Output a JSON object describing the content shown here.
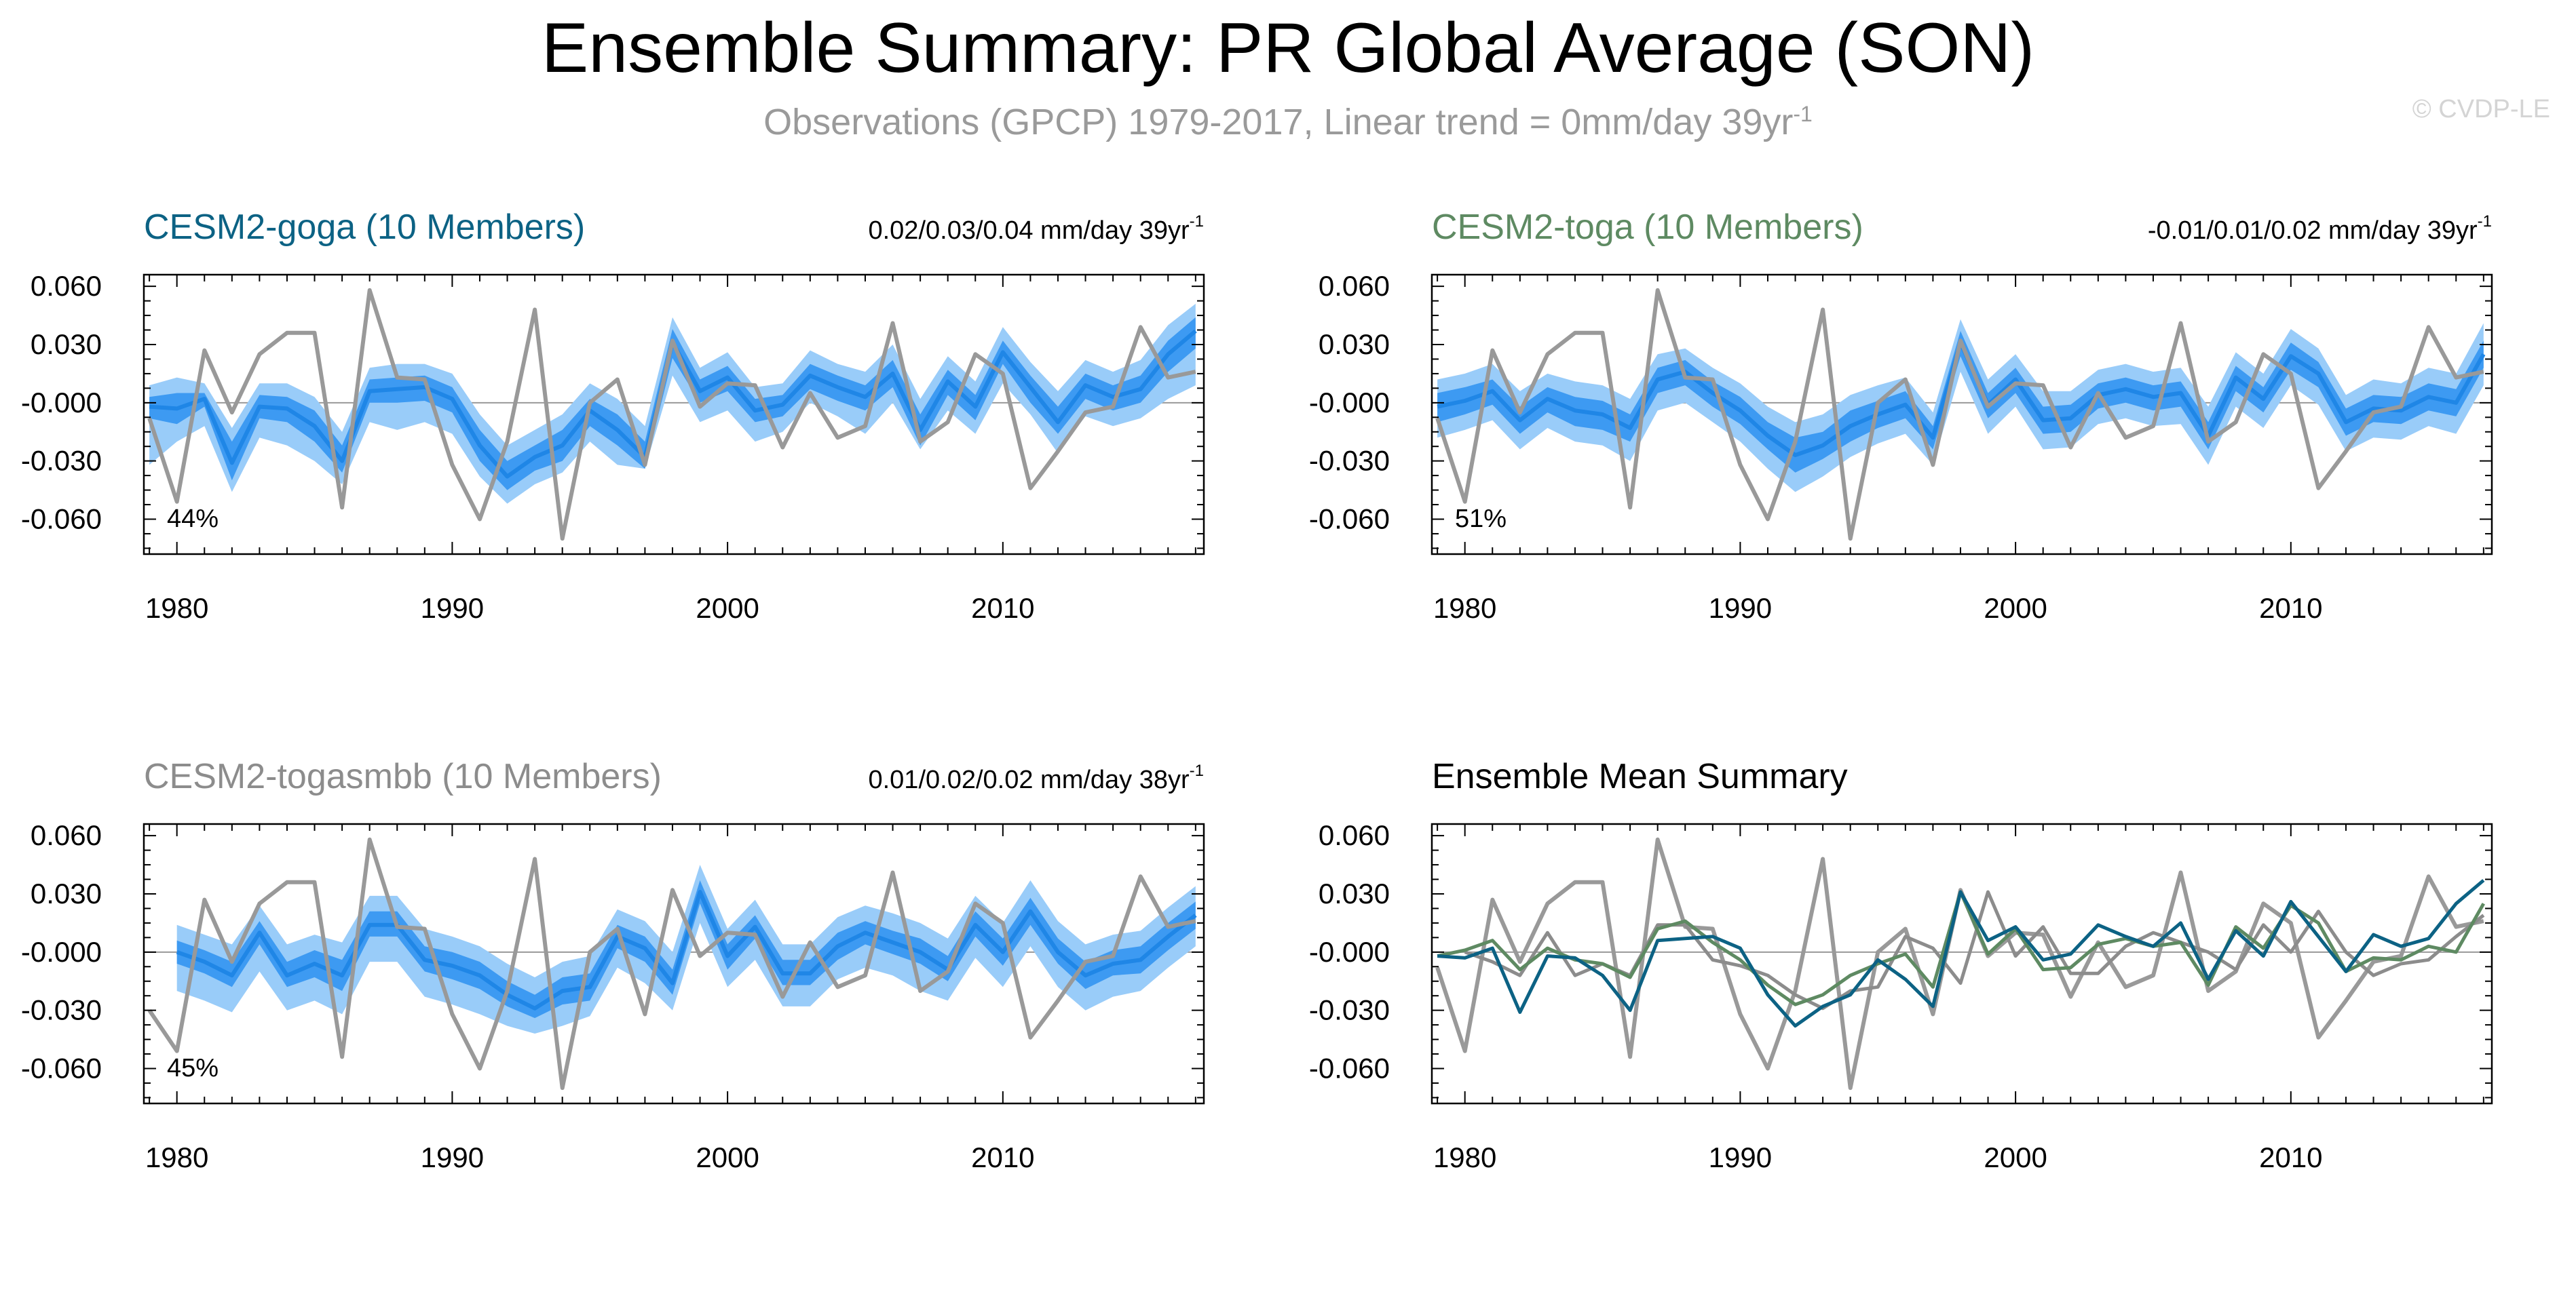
{
  "title": "Ensemble Summary: PR Global Average (SON)",
  "subtitle": "Observations (GPCP) 1979-2017, Linear trend = 0mm/day 39yr",
  "subtitle_sup": "-1",
  "watermark": "© CVDP-LE",
  "colors": {
    "obs": "#999999",
    "band_outer": "#99ccf9",
    "band_inner": "#3d9af2",
    "ens_line": "#1f86e6",
    "goga": "#0c6284",
    "toga": "#5e8a62",
    "togasmbb": "#8c8c8c",
    "axis": "#000000",
    "zero_line": "#999999"
  },
  "chart_data": [
    {
      "type": "area",
      "panel": "goga",
      "title": "CESM2-goga (10 Members)",
      "title_color": "#0c6284",
      "trend_text": "0.02/0.03/0.04 mm/day 39yr",
      "trend_sup": "-1",
      "percent_label": "44%",
      "x_range": [
        1979,
        2017
      ],
      "xlim": [
        1978.8,
        2017.3
      ],
      "ylim": [
        -0.078,
        0.066
      ],
      "y_ticks": [
        0.06,
        0.03,
        0.0,
        -0.03,
        -0.06
      ],
      "y_tick_labels": [
        "0.060",
        "0.030",
        "-0.000",
        "-0.030",
        "-0.060"
      ],
      "x_ticks": [
        1980,
        1990,
        2000,
        2010
      ],
      "x_tick_labels": [
        "1980",
        "1990",
        "2000",
        "2010"
      ],
      "ensemble_mean": [
        -0.002,
        -0.003,
        0.002,
        -0.031,
        -0.002,
        -0.003,
        -0.012,
        -0.03,
        0.006,
        0.007,
        0.008,
        0.002,
        -0.022,
        -0.038,
        -0.028,
        -0.022,
        -0.004,
        -0.014,
        -0.028,
        0.031,
        0.006,
        0.013,
        -0.004,
        -0.001,
        0.014,
        0.008,
        0.003,
        0.015,
        -0.014,
        0.011,
        -0.002,
        0.026,
        0.008,
        -0.01,
        0.009,
        0.003,
        0.007,
        0.025,
        0.037
      ],
      "inner_upper": [
        0.003,
        0.005,
        0.005,
        -0.02,
        0.004,
        0.003,
        -0.004,
        -0.022,
        0.012,
        0.013,
        0.014,
        0.008,
        -0.014,
        -0.03,
        -0.022,
        -0.014,
        0.002,
        -0.006,
        -0.02,
        0.038,
        0.012,
        0.019,
        0.002,
        0.004,
        0.02,
        0.014,
        0.009,
        0.022,
        -0.006,
        0.017,
        0.004,
        0.032,
        0.014,
        -0.002,
        0.015,
        0.009,
        0.014,
        0.032,
        0.044
      ],
      "inner_lower": [
        -0.008,
        -0.011,
        -0.002,
        -0.04,
        -0.008,
        -0.01,
        -0.02,
        -0.036,
        0.0,
        0.0,
        0.001,
        -0.005,
        -0.03,
        -0.045,
        -0.035,
        -0.03,
        -0.012,
        -0.022,
        -0.034,
        0.023,
        0.0,
        0.006,
        -0.01,
        -0.007,
        0.007,
        0.001,
        -0.004,
        0.008,
        -0.022,
        0.004,
        -0.009,
        0.02,
        0.0,
        -0.016,
        0.002,
        -0.004,
        0.0,
        0.016,
        0.028
      ],
      "outer_upper": [
        0.009,
        0.013,
        0.01,
        -0.013,
        0.01,
        0.01,
        0.003,
        -0.015,
        0.018,
        0.02,
        0.02,
        0.015,
        -0.006,
        -0.022,
        -0.014,
        -0.006,
        0.01,
        0.002,
        -0.012,
        0.044,
        0.018,
        0.026,
        0.008,
        0.01,
        0.027,
        0.02,
        0.016,
        0.03,
        0.002,
        0.024,
        0.011,
        0.039,
        0.021,
        0.006,
        0.022,
        0.016,
        0.022,
        0.04,
        0.051
      ],
      "outer_lower": [
        -0.032,
        -0.02,
        -0.012,
        -0.046,
        -0.018,
        -0.022,
        -0.03,
        -0.042,
        -0.01,
        -0.014,
        -0.01,
        -0.016,
        -0.038,
        -0.052,
        -0.042,
        -0.036,
        -0.02,
        -0.032,
        -0.034,
        0.014,
        -0.01,
        -0.004,
        -0.02,
        -0.015,
        0.0,
        -0.007,
        -0.016,
        0.0,
        -0.024,
        -0.004,
        -0.016,
        0.01,
        -0.006,
        -0.026,
        -0.007,
        -0.012,
        -0.008,
        0.002,
        0.009
      ],
      "obs": [
        -0.008,
        -0.051,
        0.027,
        -0.005,
        0.025,
        0.036,
        0.036,
        -0.054,
        0.058,
        0.013,
        0.012,
        -0.032,
        -0.06,
        -0.02,
        0.048,
        -0.07,
        0.0,
        0.012,
        -0.032,
        0.032,
        -0.002,
        0.01,
        0.009,
        -0.023,
        0.005,
        -0.018,
        -0.012,
        0.041,
        -0.02,
        -0.01,
        0.025,
        0.015,
        -0.044,
        -0.025,
        -0.005,
        -0.002,
        0.039,
        0.013,
        0.016
      ]
    },
    {
      "type": "area",
      "panel": "toga",
      "title": "CESM2-toga (10 Members)",
      "title_color": "#5e8a62",
      "trend_text": "-0.01/0.01/0.02 mm/day 39yr",
      "trend_sup": "-1",
      "percent_label": "51%",
      "x_range": [
        1979,
        2017
      ],
      "xlim": [
        1978.8,
        2017.3
      ],
      "ylim": [
        -0.078,
        0.066
      ],
      "y_ticks": [
        0.06,
        0.03,
        0.0,
        -0.03,
        -0.06
      ],
      "y_tick_labels": [
        "0.060",
        "0.030",
        "-0.000",
        "-0.030",
        "-0.060"
      ],
      "x_ticks": [
        1980,
        1990,
        2000,
        2010
      ],
      "x_tick_labels": [
        "1980",
        "1990",
        "2000",
        "2010"
      ],
      "ensemble_mean": [
        -0.002,
        0.001,
        0.006,
        -0.009,
        0.002,
        -0.004,
        -0.006,
        -0.013,
        0.012,
        0.016,
        0.005,
        -0.004,
        -0.017,
        -0.027,
        -0.022,
        -0.012,
        -0.006,
        -0.001,
        -0.018,
        0.031,
        -0.001,
        0.012,
        -0.009,
        -0.008,
        0.004,
        0.007,
        0.003,
        0.005,
        -0.017,
        0.013,
        0.002,
        0.024,
        0.015,
        -0.01,
        -0.003,
        -0.004,
        0.003,
        0.0,
        0.025
      ],
      "inner_upper": [
        0.005,
        0.008,
        0.012,
        -0.002,
        0.008,
        0.003,
        0.001,
        -0.006,
        0.018,
        0.022,
        0.011,
        0.003,
        -0.01,
        -0.018,
        -0.015,
        -0.004,
        0.001,
        0.006,
        -0.012,
        0.037,
        0.005,
        0.018,
        -0.002,
        -0.001,
        0.01,
        0.013,
        0.009,
        0.011,
        -0.01,
        0.019,
        0.008,
        0.031,
        0.021,
        -0.003,
        0.004,
        0.003,
        0.01,
        0.007,
        0.032
      ],
      "inner_lower": [
        -0.01,
        -0.006,
        -0.001,
        -0.016,
        -0.005,
        -0.012,
        -0.014,
        -0.02,
        0.005,
        0.009,
        -0.002,
        -0.011,
        -0.024,
        -0.036,
        -0.029,
        -0.02,
        -0.013,
        -0.008,
        -0.024,
        0.024,
        -0.008,
        0.005,
        -0.016,
        -0.015,
        -0.003,
        0.0,
        -0.004,
        -0.002,
        -0.024,
        0.006,
        -0.005,
        0.017,
        0.008,
        -0.017,
        -0.01,
        -0.011,
        -0.004,
        -0.007,
        0.018
      ],
      "outer_upper": [
        0.012,
        0.015,
        0.02,
        0.006,
        0.015,
        0.011,
        0.009,
        0.002,
        0.025,
        0.028,
        0.018,
        0.01,
        -0.002,
        -0.01,
        -0.006,
        0.004,
        0.009,
        0.013,
        -0.005,
        0.043,
        0.012,
        0.025,
        0.006,
        0.006,
        0.017,
        0.02,
        0.016,
        0.018,
        -0.002,
        0.026,
        0.015,
        0.038,
        0.028,
        0.004,
        0.012,
        0.01,
        0.018,
        0.015,
        0.041
      ],
      "outer_lower": [
        -0.018,
        -0.014,
        -0.009,
        -0.024,
        -0.013,
        -0.02,
        -0.022,
        -0.03,
        -0.004,
        0.0,
        -0.01,
        -0.02,
        -0.034,
        -0.046,
        -0.038,
        -0.028,
        -0.021,
        -0.016,
        -0.032,
        0.016,
        -0.016,
        -0.002,
        -0.024,
        -0.023,
        -0.011,
        -0.008,
        -0.012,
        -0.011,
        -0.032,
        -0.002,
        -0.013,
        0.009,
        -0.001,
        -0.025,
        -0.018,
        -0.019,
        -0.012,
        -0.016,
        0.009
      ],
      "obs": [
        -0.008,
        -0.051,
        0.027,
        -0.005,
        0.025,
        0.036,
        0.036,
        -0.054,
        0.058,
        0.013,
        0.012,
        -0.032,
        -0.06,
        -0.02,
        0.048,
        -0.07,
        0.0,
        0.012,
        -0.032,
        0.032,
        -0.002,
        0.01,
        0.009,
        -0.023,
        0.005,
        -0.018,
        -0.012,
        0.041,
        -0.02,
        -0.01,
        0.025,
        0.015,
        -0.044,
        -0.025,
        -0.005,
        -0.002,
        0.039,
        0.013,
        0.016
      ]
    },
    {
      "type": "area",
      "panel": "togasmbb",
      "title": "CESM2-togasmbb (10 Members)",
      "title_color": "#8c8c8c",
      "trend_text": "0.01/0.02/0.02 mm/day 38yr",
      "trend_sup": "-1",
      "percent_label": "45%",
      "x_range": [
        1980,
        2017
      ],
      "xlim": [
        1978.8,
        2017.3
      ],
      "ylim": [
        -0.078,
        0.066
      ],
      "y_ticks": [
        0.06,
        0.03,
        0.0,
        -0.03,
        -0.06
      ],
      "y_tick_labels": [
        "0.060",
        "0.030",
        "-0.000",
        "-0.030",
        "-0.060"
      ],
      "x_ticks": [
        1980,
        1990,
        2000,
        2010
      ],
      "x_tick_labels": [
        "1980",
        "1990",
        "2000",
        "2010"
      ],
      "ensemble_mean": [
        0.0,
        -0.005,
        -0.012,
        0.01,
        -0.012,
        -0.006,
        -0.012,
        0.014,
        0.014,
        -0.004,
        -0.007,
        -0.012,
        -0.022,
        -0.029,
        -0.02,
        -0.018,
        0.008,
        0.002,
        -0.016,
        0.031,
        -0.002,
        0.013,
        -0.011,
        -0.011,
        0.003,
        0.01,
        0.005,
        0.0,
        -0.009,
        0.014,
        0.0,
        0.021,
        0.0,
        -0.012,
        -0.006,
        -0.004,
        0.008,
        0.019
      ],
      "inner_upper": [
        0.006,
        0.001,
        -0.005,
        0.016,
        -0.005,
        0.001,
        -0.004,
        0.021,
        0.021,
        0.003,
        0.0,
        -0.005,
        -0.015,
        -0.022,
        -0.013,
        -0.011,
        0.014,
        0.008,
        -0.009,
        0.037,
        0.004,
        0.019,
        -0.004,
        -0.004,
        0.01,
        0.016,
        0.011,
        0.007,
        -0.002,
        0.021,
        0.007,
        0.028,
        0.007,
        -0.005,
        0.001,
        0.003,
        0.015,
        0.026
      ],
      "inner_lower": [
        -0.006,
        -0.011,
        -0.018,
        0.004,
        -0.018,
        -0.013,
        -0.02,
        0.008,
        0.008,
        -0.01,
        -0.014,
        -0.019,
        -0.028,
        -0.034,
        -0.027,
        -0.025,
        0.002,
        -0.005,
        -0.022,
        0.025,
        -0.009,
        0.007,
        -0.017,
        -0.017,
        -0.004,
        0.004,
        -0.001,
        -0.006,
        -0.015,
        0.008,
        -0.007,
        0.014,
        -0.006,
        -0.019,
        -0.012,
        -0.011,
        0.001,
        0.012
      ],
      "outer_upper": [
        0.014,
        0.009,
        0.004,
        0.024,
        0.004,
        0.009,
        0.005,
        0.029,
        0.029,
        0.012,
        0.008,
        0.003,
        -0.006,
        -0.013,
        -0.005,
        -0.002,
        0.022,
        0.016,
        0.0,
        0.045,
        0.012,
        0.027,
        0.004,
        0.004,
        0.018,
        0.024,
        0.02,
        0.015,
        0.007,
        0.029,
        0.015,
        0.037,
        0.016,
        0.004,
        0.009,
        0.011,
        0.023,
        0.034
      ],
      "outer_lower": [
        -0.02,
        -0.025,
        -0.031,
        -0.01,
        -0.03,
        -0.025,
        -0.032,
        -0.005,
        -0.005,
        -0.023,
        -0.027,
        -0.032,
        -0.038,
        -0.042,
        -0.038,
        -0.033,
        -0.008,
        -0.016,
        -0.03,
        0.015,
        -0.018,
        -0.004,
        -0.028,
        -0.028,
        -0.014,
        -0.008,
        -0.012,
        -0.02,
        -0.025,
        -0.003,
        -0.018,
        0.003,
        -0.018,
        -0.03,
        -0.023,
        -0.02,
        -0.008,
        0.003
      ],
      "obs": [
        -0.03,
        -0.051,
        0.027,
        -0.005,
        0.025,
        0.036,
        0.036,
        -0.054,
        0.058,
        0.013,
        0.012,
        -0.032,
        -0.06,
        -0.02,
        0.048,
        -0.07,
        0.0,
        0.012,
        -0.032,
        0.032,
        -0.002,
        0.01,
        0.009,
        -0.023,
        0.005,
        -0.018,
        -0.012,
        0.041,
        -0.02,
        -0.01,
        0.025,
        0.015,
        -0.044,
        -0.025,
        -0.005,
        -0.002,
        0.039,
        0.013,
        0.016
      ]
    },
    {
      "type": "line",
      "panel": "summary",
      "title": "Ensemble Mean Summary",
      "title_color": "#000000",
      "x_range": [
        1979,
        2017
      ],
      "xlim": [
        1978.8,
        2017.3
      ],
      "ylim": [
        -0.078,
        0.066
      ],
      "y_ticks": [
        0.06,
        0.03,
        0.0,
        -0.03,
        -0.06
      ],
      "y_tick_labels": [
        "0.060",
        "0.030",
        "-0.000",
        "-0.030",
        "-0.060"
      ],
      "x_ticks": [
        1980,
        1990,
        2000,
        2010
      ],
      "x_tick_labels": [
        "1980",
        "1990",
        "2000",
        "2010"
      ],
      "obs": [
        -0.008,
        -0.051,
        0.027,
        -0.005,
        0.025,
        0.036,
        0.036,
        -0.054,
        0.058,
        0.013,
        0.012,
        -0.032,
        -0.06,
        -0.02,
        0.048,
        -0.07,
        0.0,
        0.012,
        -0.032,
        0.032,
        -0.002,
        0.01,
        0.009,
        -0.023,
        0.005,
        -0.018,
        -0.012,
        0.041,
        -0.02,
        -0.01,
        0.025,
        0.015,
        -0.044,
        -0.025,
        -0.005,
        -0.002,
        0.039,
        0.013,
        0.016
      ],
      "series": [
        {
          "color": "#8c8c8c",
          "start": 1980,
          "values": [
            0.0,
            -0.005,
            -0.012,
            0.01,
            -0.012,
            -0.006,
            -0.012,
            0.014,
            0.014,
            -0.004,
            -0.007,
            -0.012,
            -0.022,
            -0.029,
            -0.02,
            -0.018,
            0.008,
            0.002,
            -0.016,
            0.031,
            -0.002,
            0.013,
            -0.011,
            -0.011,
            0.003,
            0.01,
            0.005,
            0.0,
            -0.009,
            0.014,
            0.0,
            0.021,
            0.0,
            -0.012,
            -0.006,
            -0.004,
            0.008,
            0.019
          ]
        },
        {
          "color": "#5e8a62",
          "start": 1979,
          "values": [
            -0.002,
            0.001,
            0.006,
            -0.009,
            0.002,
            -0.004,
            -0.006,
            -0.013,
            0.012,
            0.016,
            0.005,
            -0.004,
            -0.017,
            -0.027,
            -0.022,
            -0.012,
            -0.006,
            -0.001,
            -0.018,
            0.031,
            -0.001,
            0.012,
            -0.009,
            -0.008,
            0.004,
            0.007,
            0.003,
            0.005,
            -0.017,
            0.013,
            0.002,
            0.024,
            0.015,
            -0.01,
            -0.003,
            -0.004,
            0.003,
            0.0,
            0.025
          ]
        },
        {
          "color": "#0c6284",
          "start": 1979,
          "values": [
            -0.002,
            -0.003,
            0.002,
            -0.031,
            -0.002,
            -0.003,
            -0.012,
            -0.03,
            0.006,
            0.007,
            0.008,
            0.002,
            -0.022,
            -0.038,
            -0.028,
            -0.022,
            -0.004,
            -0.014,
            -0.028,
            0.031,
            0.006,
            0.013,
            -0.004,
            -0.001,
            0.014,
            0.008,
            0.003,
            0.015,
            -0.014,
            0.011,
            -0.002,
            0.026,
            0.008,
            -0.01,
            0.009,
            0.003,
            0.007,
            0.025,
            0.037
          ]
        }
      ]
    }
  ]
}
